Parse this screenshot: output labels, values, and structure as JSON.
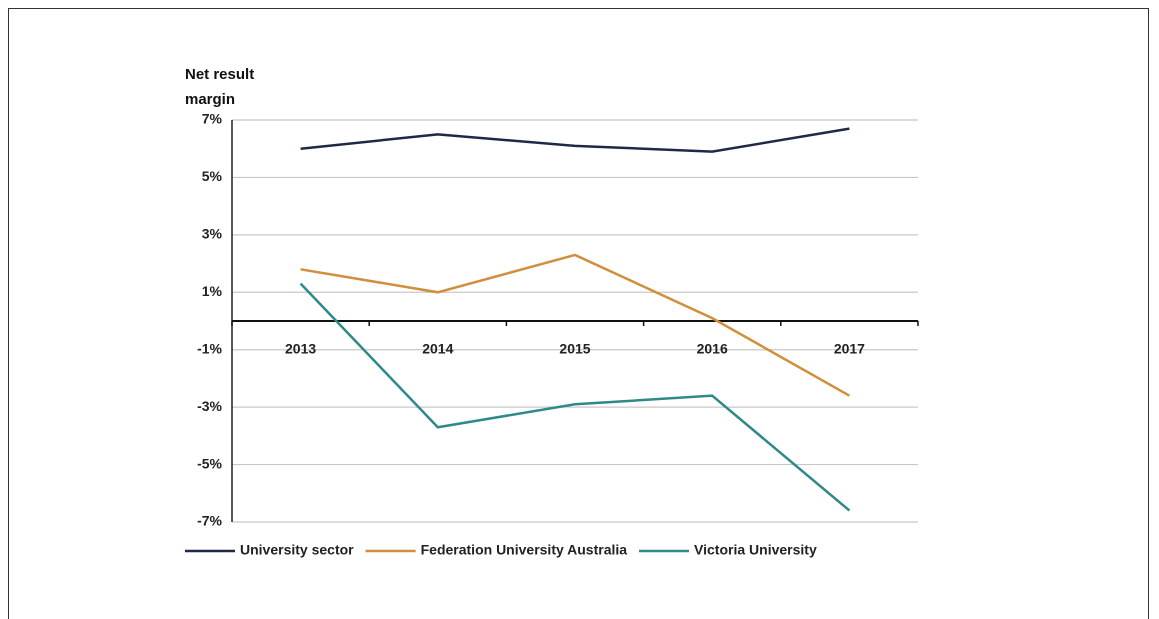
{
  "chart_data": {
    "type": "line",
    "title": "Net result margin",
    "categories": [
      "2013",
      "2014",
      "2015",
      "2016",
      "2017"
    ],
    "series": [
      {
        "name": "University sector",
        "color": "#1e2a45",
        "values": [
          6.0,
          6.5,
          6.1,
          5.9,
          6.7
        ]
      },
      {
        "name": "Federation University Australia",
        "color": "#d08f3c",
        "values": [
          1.8,
          1.0,
          2.3,
          0.1,
          -2.6
        ]
      },
      {
        "name": "Victoria University",
        "color": "#2e8a88",
        "values": [
          1.3,
          -3.7,
          -2.9,
          -2.6,
          -6.6
        ]
      }
    ],
    "ylim": [
      -7,
      7
    ],
    "yticks": [
      {
        "value": -7,
        "label": "-7%"
      },
      {
        "value": -5,
        "label": "-5%"
      },
      {
        "value": -3,
        "label": "-3%"
      },
      {
        "value": -1,
        "label": "-1%"
      },
      {
        "value": 1,
        "label": "1%"
      },
      {
        "value": 3,
        "label": "3%"
      },
      {
        "value": 5,
        "label": "5%"
      },
      {
        "value": 7,
        "label": "7%"
      }
    ],
    "grid": true,
    "legend": "bottom"
  }
}
